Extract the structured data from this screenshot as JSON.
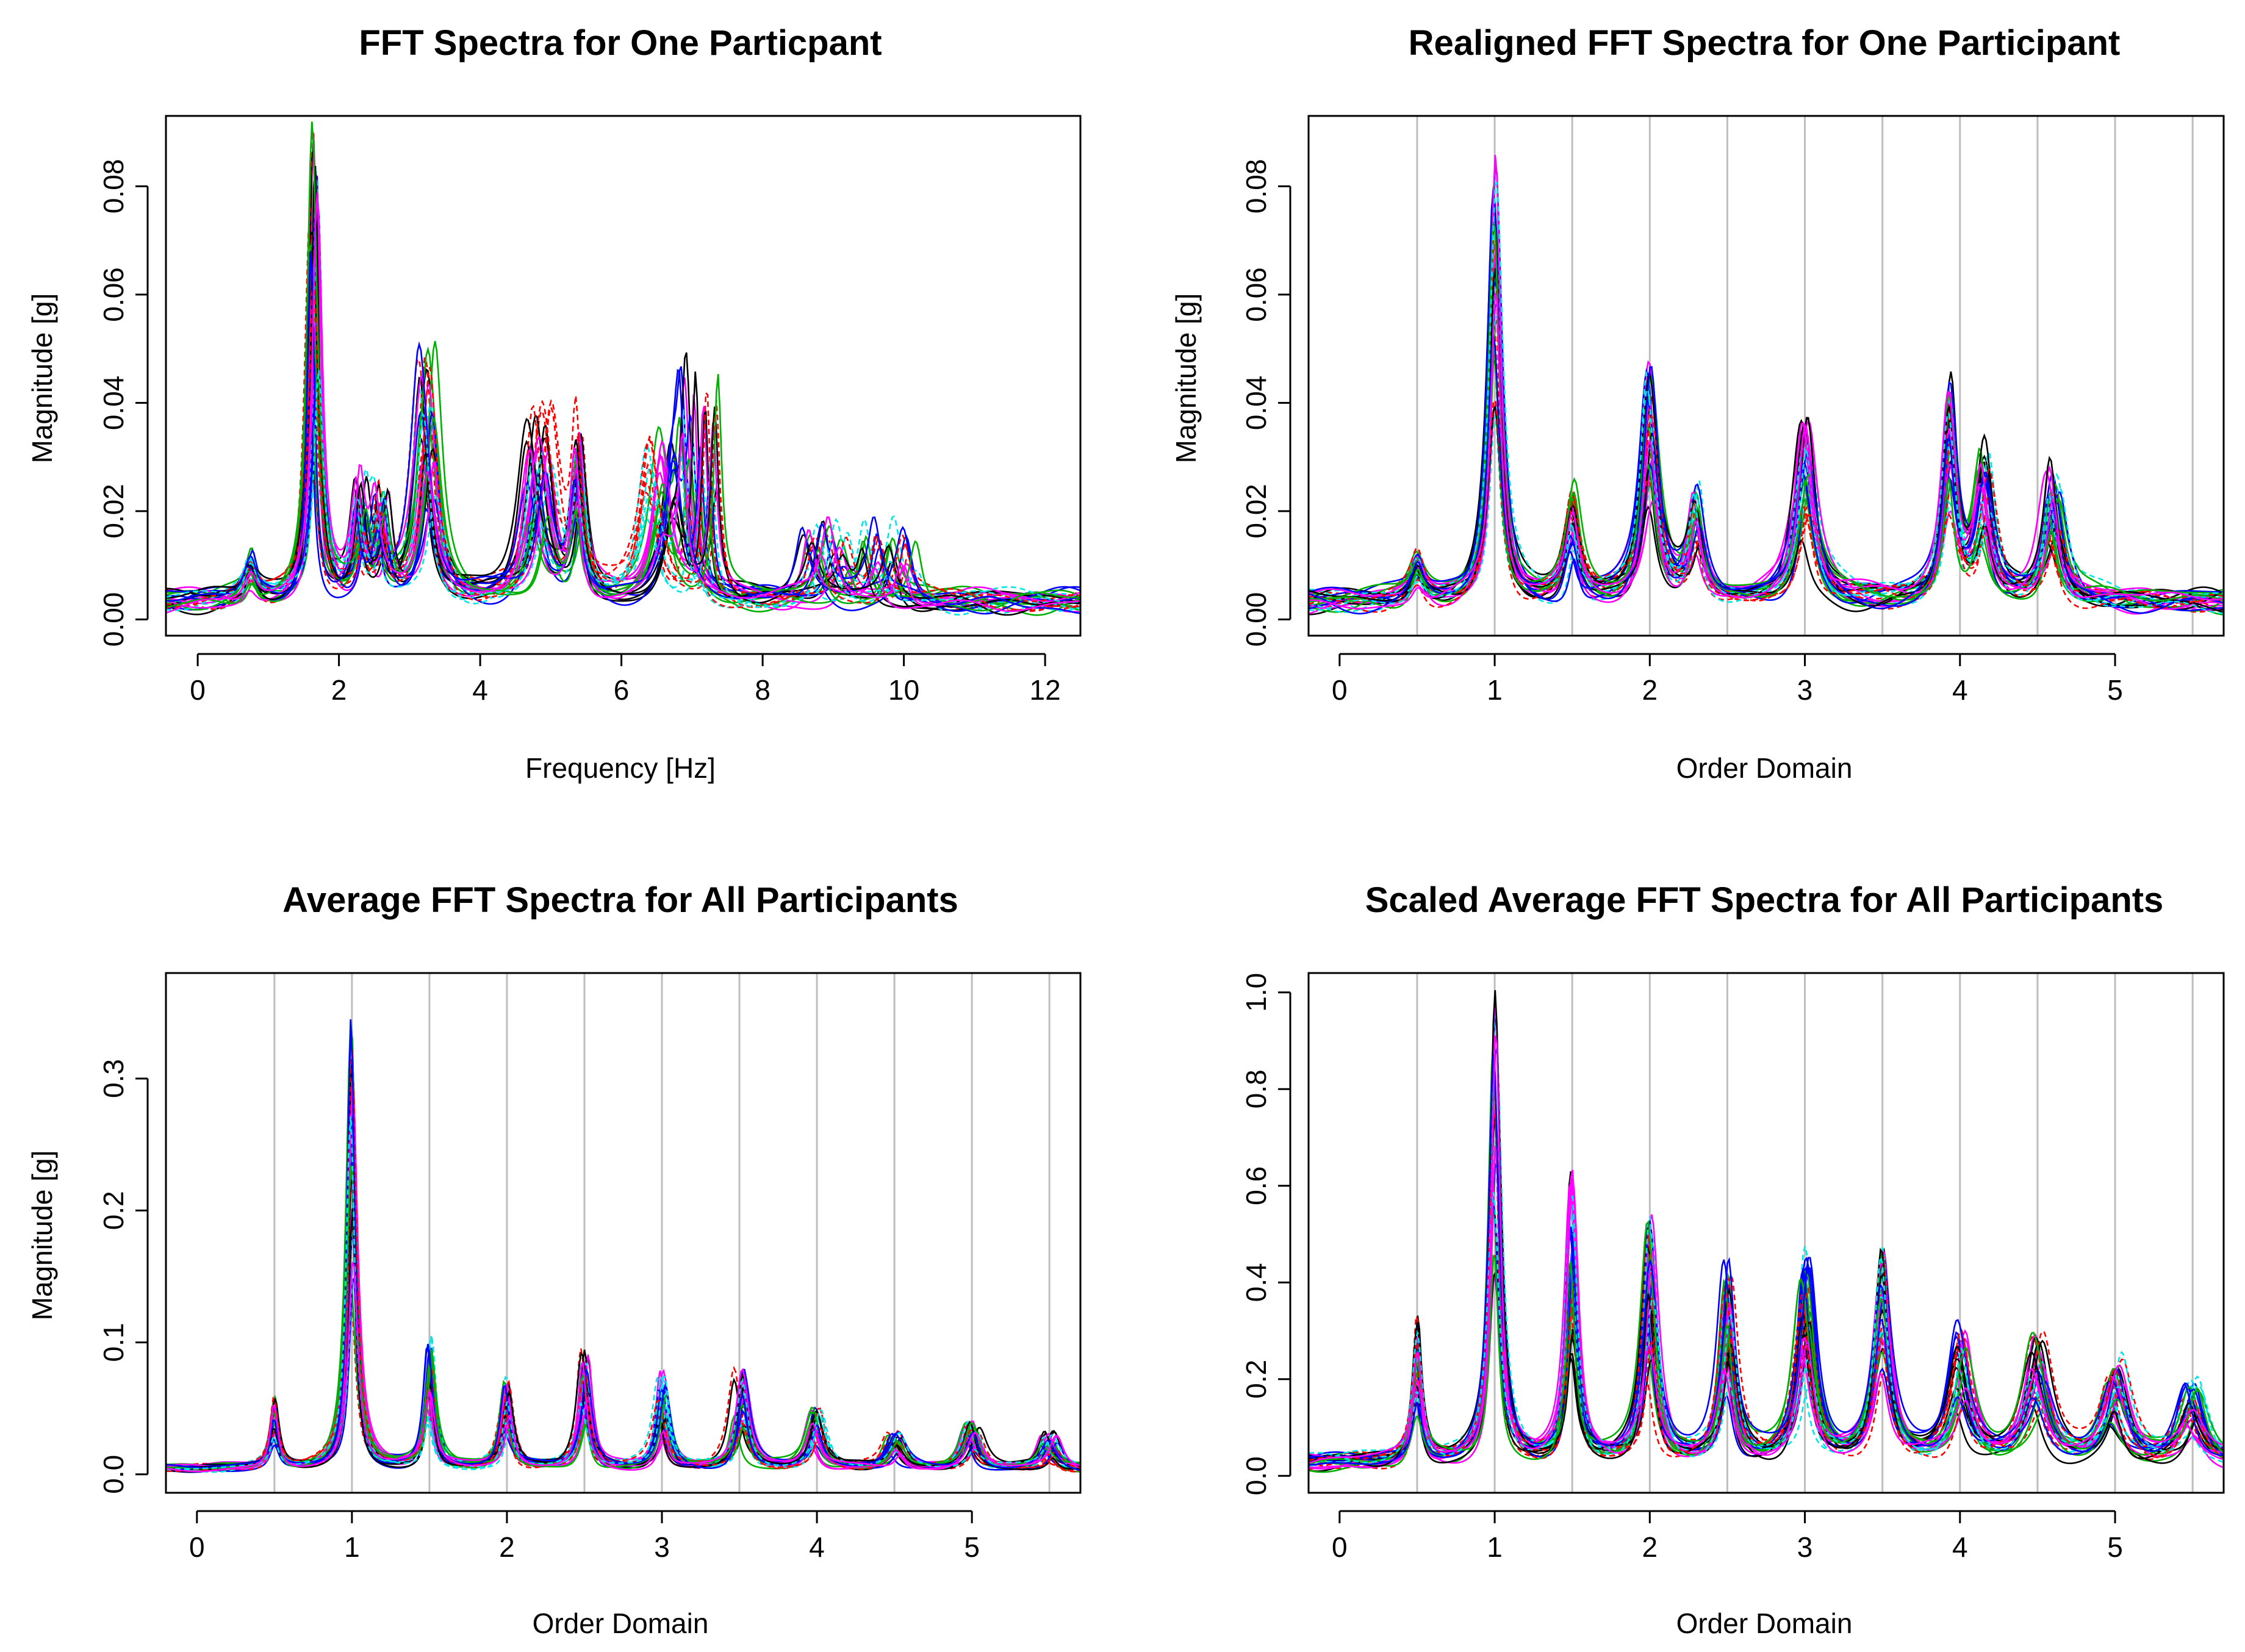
{
  "figure": {
    "background": "#ffffff",
    "palette": [
      "#000000",
      "#ff0000",
      "#00b000",
      "#0000ff",
      "#00e5e5",
      "#ff00ff"
    ],
    "vertical_grid_color": "#bebebe"
  },
  "chart_data": [
    {
      "type": "line",
      "title": "FFT Spectra for One Particpant",
      "xlabel": "Frequency [Hz]",
      "ylabel": "Magnitude [g]",
      "xlim": [
        -0.45,
        12.5
      ],
      "ylim": [
        -0.003,
        0.093
      ],
      "xticks": [
        0,
        2,
        4,
        6,
        8,
        10,
        12
      ],
      "yticks": [
        0.0,
        0.02,
        0.04,
        0.06,
        0.08
      ],
      "ytick_labels": [
        "0.00",
        "0.02",
        "0.04",
        "0.06",
        "0.08"
      ],
      "vertical_grid": [],
      "noise_floor": 0.006,
      "series_count": 30,
      "peaks": [
        {
          "x": 0.75,
          "y": 0.008,
          "width": 0.1
        },
        {
          "x": 1.65,
          "y": 0.089,
          "width": 0.08
        },
        {
          "x": 2.3,
          "y": 0.021,
          "width": 0.08
        },
        {
          "x": 2.6,
          "y": 0.019,
          "width": 0.08
        },
        {
          "x": 3.25,
          "y": 0.047,
          "width": 0.13
        },
        {
          "x": 4.85,
          "y": 0.036,
          "width": 0.15
        },
        {
          "x": 5.3,
          "y": 0.031,
          "width": 0.09
        },
        {
          "x": 6.6,
          "y": 0.03,
          "width": 0.15
        },
        {
          "x": 7.1,
          "y": 0.041,
          "width": 0.07
        },
        {
          "x": 8.9,
          "y": 0.015,
          "width": 0.12
        },
        {
          "x": 9.8,
          "y": 0.014,
          "width": 0.1
        }
      ]
    },
    {
      "type": "line",
      "title": "Realigned FFT Spectra for One Participant",
      "xlabel": "Order Domain",
      "ylabel": "Magnitude [g]",
      "xlim": [
        -0.2,
        5.7
      ],
      "ylim": [
        -0.003,
        0.093
      ],
      "xticks": [
        0,
        1,
        2,
        3,
        4,
        5
      ],
      "yticks": [
        0.0,
        0.02,
        0.04,
        0.06,
        0.08
      ],
      "ytick_labels": [
        "0.00",
        "0.02",
        "0.04",
        "0.06",
        "0.08"
      ],
      "vertical_grid": [
        0.5,
        1,
        1.5,
        2,
        2.5,
        3,
        3.5,
        4,
        4.5,
        5,
        5.5
      ],
      "noise_floor": 0.006,
      "series_count": 30,
      "peaks": [
        {
          "x": 0.5,
          "y": 0.008,
          "width": 0.05
        },
        {
          "x": 1.0,
          "y": 0.084,
          "width": 0.045
        },
        {
          "x": 1.5,
          "y": 0.02,
          "width": 0.05
        },
        {
          "x": 2.0,
          "y": 0.044,
          "width": 0.06
        },
        {
          "x": 2.3,
          "y": 0.02,
          "width": 0.05
        },
        {
          "x": 3.0,
          "y": 0.035,
          "width": 0.07
        },
        {
          "x": 3.95,
          "y": 0.04,
          "width": 0.05
        },
        {
          "x": 4.15,
          "y": 0.027,
          "width": 0.06
        },
        {
          "x": 4.6,
          "y": 0.024,
          "width": 0.06
        }
      ]
    },
    {
      "type": "line",
      "title": "Average FFT Spectra for All Participants",
      "xlabel": "Order Domain",
      "ylabel": "Magnitude [g]",
      "xlim": [
        -0.2,
        5.7
      ],
      "ylim": [
        -0.014,
        0.38
      ],
      "xticks": [
        0,
        1,
        2,
        3,
        4,
        5
      ],
      "yticks": [
        0.0,
        0.1,
        0.2,
        0.3
      ],
      "ytick_labels": [
        "0.0",
        "0.1",
        "0.2",
        "0.3"
      ],
      "vertical_grid": [
        0.5,
        1,
        1.5,
        2,
        2.5,
        3,
        3.5,
        4,
        4.5,
        5,
        5.5
      ],
      "noise_floor": 0.008,
      "series_count": 30,
      "peaks": [
        {
          "x": 0.5,
          "y": 0.055,
          "width": 0.035
        },
        {
          "x": 1.0,
          "y": 0.35,
          "width": 0.035
        },
        {
          "x": 1.5,
          "y": 0.1,
          "width": 0.035
        },
        {
          "x": 2.0,
          "y": 0.068,
          "width": 0.04
        },
        {
          "x": 2.5,
          "y": 0.09,
          "width": 0.04
        },
        {
          "x": 3.0,
          "y": 0.073,
          "width": 0.04
        },
        {
          "x": 3.5,
          "y": 0.075,
          "width": 0.045
        },
        {
          "x": 4.0,
          "y": 0.047,
          "width": 0.05
        },
        {
          "x": 4.5,
          "y": 0.027,
          "width": 0.05
        },
        {
          "x": 5.0,
          "y": 0.037,
          "width": 0.05
        },
        {
          "x": 5.5,
          "y": 0.027,
          "width": 0.05
        }
      ]
    },
    {
      "type": "line",
      "title": "Scaled Average FFT Spectra for All Participants",
      "xlabel": "Order Domain",
      "ylabel": "",
      "xlim": [
        -0.2,
        5.7
      ],
      "ylim": [
        -0.035,
        1.04
      ],
      "xticks": [
        0,
        1,
        2,
        3,
        4,
        5
      ],
      "yticks": [
        0.0,
        0.2,
        0.4,
        0.6,
        0.8,
        1.0
      ],
      "ytick_labels": [
        "0.0",
        "0.2",
        "0.4",
        "0.6",
        "0.8",
        "1.0"
      ],
      "vertical_grid": [
        0.5,
        1,
        1.5,
        2,
        2.5,
        3,
        3.5,
        4,
        4.5,
        5,
        5.5
      ],
      "noise_floor": 0.05,
      "series_count": 30,
      "peaks": [
        {
          "x": 0.5,
          "y": 0.3,
          "width": 0.035
        },
        {
          "x": 1.0,
          "y": 0.98,
          "width": 0.04
        },
        {
          "x": 1.5,
          "y": 0.61,
          "width": 0.04
        },
        {
          "x": 2.0,
          "y": 0.52,
          "width": 0.05
        },
        {
          "x": 2.5,
          "y": 0.4,
          "width": 0.05
        },
        {
          "x": 3.0,
          "y": 0.44,
          "width": 0.06
        },
        {
          "x": 3.5,
          "y": 0.45,
          "width": 0.06
        },
        {
          "x": 4.0,
          "y": 0.28,
          "width": 0.07
        },
        {
          "x": 4.5,
          "y": 0.27,
          "width": 0.08
        },
        {
          "x": 5.0,
          "y": 0.21,
          "width": 0.08
        },
        {
          "x": 5.5,
          "y": 0.17,
          "width": 0.08
        }
      ]
    }
  ]
}
